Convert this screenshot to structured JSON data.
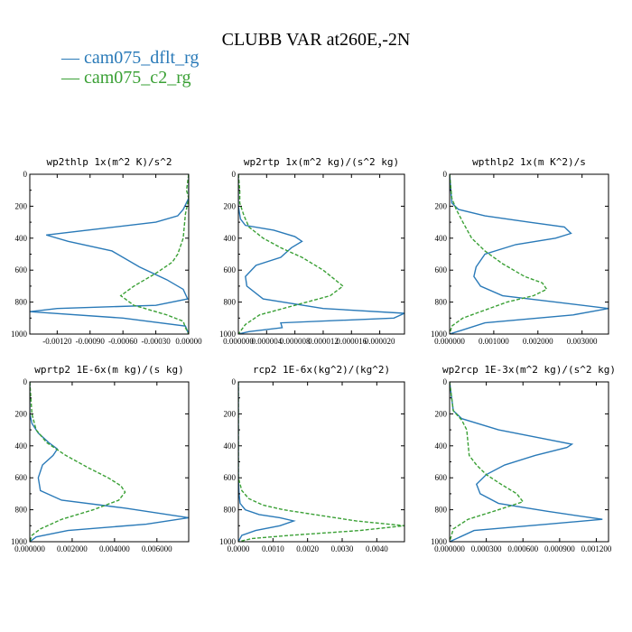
{
  "figure_title": "CLUBB VAR at260E,-2N",
  "legend": [
    {
      "label": "— cam075_dflt_rg",
      "color": "#2a7ab8"
    },
    {
      "label": "— cam075_c2_rg",
      "color": "#3aa035"
    }
  ],
  "chart_data": [
    {
      "type": "line",
      "title": "wp2thlp   1x(m^2 K)/s^2",
      "xlim": [
        -0.00145,
        0
      ],
      "ylim": [
        1000,
        0
      ],
      "xticks": [
        -0.0012,
        -0.0009,
        -0.0006,
        -0.0003,
        0
      ],
      "xtick_labels": [
        "-0.00120",
        "-0.00090",
        "-0.00060",
        "-0.00030",
        "0.00000"
      ],
      "yticks": [
        0,
        200,
        400,
        600,
        800,
        1000
      ],
      "ytick_labels": [
        "0",
        "200",
        "400",
        "600",
        "800",
        "1000"
      ],
      "series": [
        {
          "name": "cam075_dflt_rg",
          "color": "#2a7ab8",
          "dash": "",
          "x": [
            0,
            0,
            -5e-05,
            -0.0001,
            -0.0003,
            -0.0008,
            -0.0013,
            -0.0011,
            -0.0007,
            -0.00045,
            -0.0002,
            -5e-05,
            -1e-05,
            -0.0003,
            -0.0012,
            -0.00145,
            -0.0006,
            -3e-05,
            0
          ],
          "y": [
            0,
            150,
            220,
            260,
            300,
            340,
            380,
            420,
            480,
            580,
            660,
            720,
            780,
            820,
            840,
            860,
            900,
            950,
            1000
          ]
        },
        {
          "name": "cam075_c2_rg",
          "color": "#3aa035",
          "dash": "4,2",
          "x": [
            0,
            -2e-05,
            0,
            -3e-05,
            -5e-05,
            -0.0001,
            -0.00015,
            -0.0003,
            -0.0005,
            -0.00062,
            -0.0005,
            -0.0002,
            -5e-05,
            -3e-05,
            0
          ],
          "y": [
            0,
            100,
            150,
            250,
            400,
            500,
            550,
            620,
            700,
            760,
            820,
            880,
            920,
            960,
            1000
          ]
        }
      ]
    },
    {
      "type": "line",
      "title": "wp2rtp   1x(m^2 kg)/(s^2 kg)",
      "xlim": [
        0,
        2.35e-05
      ],
      "ylim": [
        1000,
        0
      ],
      "xticks": [
        0,
        4e-06,
        8e-06,
        1.2e-05,
        1.6e-05,
        2e-05
      ],
      "xtick_labels": [
        "0.000000",
        "0.000004",
        "0.000008",
        "0.000012",
        "0.000016",
        "0.000020"
      ],
      "yticks": [
        0,
        200,
        400,
        600,
        800,
        1000
      ],
      "ytick_labels": [
        "0",
        "200",
        "400",
        "600",
        "800",
        "1000"
      ],
      "series": [
        {
          "name": "cam075_dflt_rg",
          "color": "#2a7ab8",
          "dash": "",
          "x": [
            0,
            0,
            0,
            3e-07,
            1e-06,
            5e-06,
            8e-06,
            9e-06,
            7.5e-06,
            6e-06,
            2.5e-06,
            1e-06,
            1.2e-06,
            3.5e-06,
            1.2e-05,
            2.35e-05,
            2.2e-05,
            6e-06,
            6.2e-06,
            1.5e-06,
            0
          ],
          "y": [
            0,
            100,
            200,
            280,
            320,
            350,
            390,
            420,
            460,
            520,
            570,
            640,
            700,
            780,
            840,
            870,
            900,
            930,
            960,
            985,
            1000
          ]
        },
        {
          "name": "cam075_c2_rg",
          "color": "#3aa035",
          "dash": "4,2",
          "x": [
            0,
            2e-07,
            2e-07,
            8e-07,
            1.5e-06,
            3.5e-06,
            6e-06,
            9e-06,
            1.2e-05,
            1.48e-05,
            1.3e-05,
            8e-06,
            3e-06,
            1e-06,
            0
          ],
          "y": [
            0,
            100,
            180,
            260,
            330,
            400,
            460,
            520,
            600,
            700,
            760,
            820,
            880,
            940,
            1000
          ]
        }
      ]
    },
    {
      "type": "line",
      "title": "wpthlp2   1x(m K^2)/s",
      "xlim": [
        0,
        0.0036
      ],
      "ylim": [
        1000,
        0
      ],
      "xticks": [
        0,
        0.001,
        0.002,
        0.003
      ],
      "xtick_labels": [
        "0.000000",
        "0.001000",
        "0.002000",
        "0.003000"
      ],
      "yticks": [
        0,
        200,
        400,
        600,
        800,
        1000
      ],
      "ytick_labels": [
        "0",
        "200",
        "400",
        "600",
        "800",
        "1000"
      ],
      "series": [
        {
          "name": "cam075_dflt_rg",
          "color": "#2a7ab8",
          "dash": "",
          "x": [
            0,
            5e-05,
            0.0002,
            0.0008,
            0.0018,
            0.0026,
            0.00275,
            0.0024,
            0.0015,
            0.0008,
            0.0006,
            0.00055,
            0.0007,
            0.0012,
            0.0024,
            0.0036,
            0.0028,
            0.0008,
            0
          ],
          "y": [
            0,
            180,
            220,
            260,
            300,
            330,
            370,
            400,
            440,
            500,
            580,
            640,
            700,
            760,
            800,
            840,
            880,
            930,
            1000
          ]
        },
        {
          "name": "cam075_c2_rg",
          "color": "#3aa035",
          "dash": "4,2",
          "x": [
            0,
            5e-05,
            0.00015,
            0.0003,
            0.0005,
            0.0008,
            0.0012,
            0.0017,
            0.0021,
            0.0022,
            0.0019,
            0.0013,
            0.0008,
            0.0003,
            5e-05,
            0
          ],
          "y": [
            0,
            150,
            220,
            300,
            400,
            480,
            560,
            640,
            680,
            720,
            760,
            800,
            850,
            900,
            950,
            1000
          ]
        }
      ]
    },
    {
      "type": "line",
      "title": "wprtp2   1E-6x(m kg)/(s kg)",
      "xlim": [
        0,
        0.0075
      ],
      "ylim": [
        1000,
        0
      ],
      "xticks": [
        0,
        0.002,
        0.004,
        0.006
      ],
      "xtick_labels": [
        "0.000000",
        "0.002000",
        "0.004000",
        "0.006000"
      ],
      "yticks": [
        0,
        200,
        400,
        600,
        800,
        1000
      ],
      "ytick_labels": [
        "0",
        "200",
        "400",
        "600",
        "800",
        "1000"
      ],
      "series": [
        {
          "name": "cam075_dflt_rg",
          "color": "#2a7ab8",
          "dash": "",
          "x": [
            0,
            0,
            0.0001,
            0.0004,
            0.0009,
            0.0013,
            0.0011,
            0.0006,
            0.0004,
            0.0005,
            0.0015,
            0.0045,
            0.0075,
            0.0055,
            0.0018,
            0.0003,
            0
          ],
          "y": [
            0,
            200,
            260,
            320,
            380,
            420,
            460,
            520,
            600,
            680,
            740,
            790,
            850,
            890,
            930,
            970,
            1000
          ]
        },
        {
          "name": "cam075_c2_rg",
          "color": "#3aa035",
          "dash": "4,2",
          "x": [
            0,
            0.0001,
            0.0003,
            0.0008,
            0.0017,
            0.0028,
            0.0037,
            0.0043,
            0.0045,
            0.0042,
            0.003,
            0.0015,
            0.0005,
            0.0001,
            0
          ],
          "y": [
            0,
            200,
            300,
            380,
            460,
            540,
            600,
            650,
            690,
            740,
            800,
            860,
            920,
            960,
            1000
          ]
        }
      ]
    },
    {
      "type": "line",
      "title": "rcp2   1E-6x(kg^2)/(kg^2)",
      "xlim": [
        0,
        0.0048
      ],
      "ylim": [
        1000,
        0
      ],
      "xticks": [
        0,
        0.001,
        0.002,
        0.003,
        0.004
      ],
      "xtick_labels": [
        "0.0000",
        "0.0010",
        "0.0020",
        "0.0030",
        "0.0040"
      ],
      "yticks": [
        0,
        200,
        400,
        600,
        800,
        1000
      ],
      "ytick_labels": [
        "0",
        "200",
        "400",
        "600",
        "800",
        "1000"
      ],
      "series": [
        {
          "name": "cam075_dflt_rg",
          "color": "#2a7ab8",
          "dash": "",
          "x": [
            0,
            0,
            2e-05,
            5e-05,
            0.0002,
            0.0006,
            0.0012,
            0.0016,
            0.0012,
            0.0005,
            0.0001,
            0
          ],
          "y": [
            0,
            600,
            700,
            760,
            800,
            830,
            850,
            870,
            900,
            930,
            960,
            1000
          ]
        },
        {
          "name": "cam075_c2_rg",
          "color": "#3aa035",
          "dash": "4,2",
          "x": [
            0,
            0,
            0.0001,
            0.0003,
            0.0007,
            0.0013,
            0.0022,
            0.0034,
            0.0048,
            0.0035,
            0.0015,
            0.0004,
            0
          ],
          "y": [
            0,
            600,
            680,
            730,
            770,
            800,
            830,
            870,
            900,
            930,
            960,
            980,
            1000
          ]
        }
      ]
    },
    {
      "type": "line",
      "title": "wp2rcp   1E-3x(m^2 kg)/(s^2 kg)",
      "xlim": [
        0,
        0.0013
      ],
      "ylim": [
        1000,
        0
      ],
      "xticks": [
        0,
        0.0003,
        0.0006,
        0.0009,
        0.0012
      ],
      "xtick_labels": [
        "0.000000",
        "0.000300",
        "0.000600",
        "0.000900",
        "0.001200"
      ],
      "yticks": [
        0,
        200,
        400,
        600,
        800,
        1000
      ],
      "ytick_labels": [
        "0",
        "200",
        "400",
        "600",
        "800",
        "1000"
      ],
      "series": [
        {
          "name": "cam075_dflt_rg",
          "color": "#2a7ab8",
          "dash": "",
          "x": [
            0,
            3e-05,
            0.0001,
            0.0004,
            0.0008,
            0.001,
            0.00096,
            0.0007,
            0.00045,
            0.0003,
            0.00022,
            0.00025,
            0.0004,
            0.0008,
            0.00125,
            0.0008,
            0.0002,
            0
          ],
          "y": [
            0,
            180,
            230,
            300,
            360,
            390,
            410,
            460,
            520,
            580,
            640,
            700,
            760,
            810,
            860,
            890,
            930,
            1000
          ]
        },
        {
          "name": "cam075_c2_rg",
          "color": "#3aa035",
          "dash": "4,2",
          "x": [
            0,
            3e-05,
            0.0001,
            0.00014,
            0.00015,
            0.00016,
            0.00022,
            0.0003,
            0.00042,
            0.00055,
            0.0006,
            0.0004,
            0.00015,
            3e-05,
            0
          ],
          "y": [
            0,
            180,
            240,
            300,
            380,
            460,
            520,
            580,
            640,
            700,
            750,
            800,
            860,
            920,
            1000
          ]
        }
      ]
    }
  ]
}
